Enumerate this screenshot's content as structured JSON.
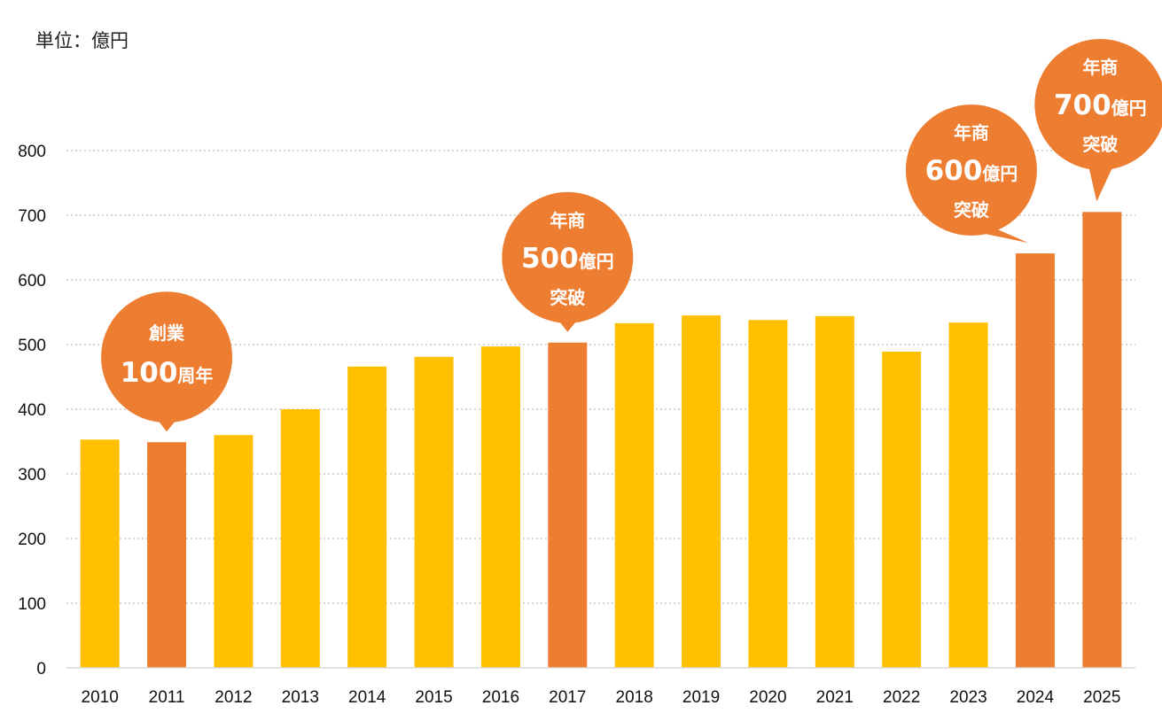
{
  "unit_label": "単位：億円",
  "colors": {
    "normal": "#FFC000",
    "highlight": "#ED7D31",
    "grid": "#BFBFBF",
    "axis": "#D9D9D9"
  },
  "chart_data": {
    "type": "bar",
    "title": "",
    "xlabel": "",
    "ylabel": "単位：億円",
    "ylim": [
      0,
      800
    ],
    "yticks": [
      0,
      100,
      200,
      300,
      400,
      500,
      600,
      700,
      800
    ],
    "categories": [
      "2010",
      "2011",
      "2012",
      "2013",
      "2014",
      "2015",
      "2016",
      "2017",
      "2018",
      "2019",
      "2020",
      "2021",
      "2022",
      "2023",
      "2024",
      "2025"
    ],
    "values": [
      353,
      349,
      360,
      400,
      466,
      481,
      497,
      503,
      533,
      545,
      538,
      544,
      489,
      534,
      641,
      705
    ],
    "highlighted": [
      "2011",
      "2017",
      "2024",
      "2025"
    ],
    "grid": true,
    "annotations": [
      {
        "category": "2011",
        "line1": "創業",
        "big": "100",
        "small": "周年",
        "line3": ""
      },
      {
        "category": "2017",
        "line1": "年商",
        "big": "500",
        "small": "億円",
        "line3": "突破"
      },
      {
        "category": "2024",
        "line1": "年商",
        "big": "600",
        "small": "億円",
        "line3": "突破"
      },
      {
        "category": "2025",
        "line1": "年商",
        "big": "700",
        "small": "億円",
        "line3": "突破"
      }
    ]
  }
}
